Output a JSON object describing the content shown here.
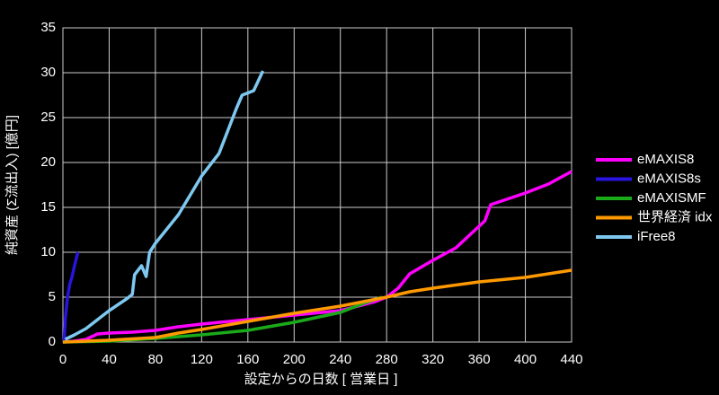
{
  "chart_data": {
    "type": "line",
    "xlabel": "設定からの日数 [ 営業日 ]",
    "ylabel": "純資産 (Σ流出入) [億円]",
    "xlim": [
      0,
      440
    ],
    "xticks": [
      0,
      40,
      80,
      120,
      160,
      200,
      240,
      280,
      320,
      360,
      400,
      440
    ],
    "ylim": [
      0,
      35
    ],
    "yticks": [
      0,
      5,
      10,
      15,
      20,
      25,
      30,
      35
    ],
    "grid": true,
    "legend": "right",
    "series": [
      {
        "name": "eMAXIS8",
        "color": "#ff00ff",
        "x": [
          0,
          10,
          20,
          30,
          40,
          60,
          80,
          100,
          120,
          160,
          200,
          240,
          270,
          280,
          290,
          300,
          320,
          340,
          355,
          365,
          370,
          400,
          420,
          440
        ],
        "values": [
          0,
          0.1,
          0.3,
          0.9,
          1.0,
          1.1,
          1.3,
          1.7,
          2.0,
          2.5,
          3.0,
          3.5,
          4.5,
          5.0,
          6.0,
          7.6,
          9.1,
          10.5,
          12.3,
          13.5,
          15.3,
          16.6,
          17.6,
          19.0
        ]
      },
      {
        "name": "eMAXIS8s",
        "color": "#2a14e0",
        "x": [
          1,
          2,
          4,
          6,
          8,
          10,
          12,
          13
        ],
        "values": [
          0,
          2.5,
          5.0,
          6.5,
          7.3,
          8.5,
          9.5,
          10.0
        ]
      },
      {
        "name": "eMAXISMF",
        "color": "#1aaa1a",
        "x": [
          0,
          40,
          80,
          120,
          160,
          200,
          240,
          260,
          276
        ],
        "values": [
          0,
          0.1,
          0.4,
          0.8,
          1.3,
          2.2,
          3.3,
          4.3,
          5.0
        ]
      },
      {
        "name": "世界経済 idx",
        "color": "#ff9900",
        "x": [
          0,
          40,
          80,
          100,
          120,
          160,
          200,
          240,
          280,
          300,
          320,
          360,
          400,
          440
        ],
        "values": [
          0,
          0.2,
          0.5,
          1.0,
          1.4,
          2.3,
          3.2,
          4.0,
          5.0,
          5.6,
          6.0,
          6.7,
          7.2,
          8.0
        ]
      },
      {
        "name": "iFree8",
        "color": "#7ec8f0",
        "x": [
          2,
          10,
          20,
          40,
          55,
          60,
          62,
          68,
          72,
          75,
          80,
          100,
          120,
          135,
          150,
          155,
          165,
          173
        ],
        "values": [
          0.3,
          0.8,
          1.5,
          3.5,
          4.8,
          5.3,
          7.5,
          8.5,
          7.3,
          10.0,
          11.0,
          14.2,
          18.5,
          21.0,
          26.0,
          27.5,
          28.0,
          30.2
        ]
      }
    ]
  }
}
